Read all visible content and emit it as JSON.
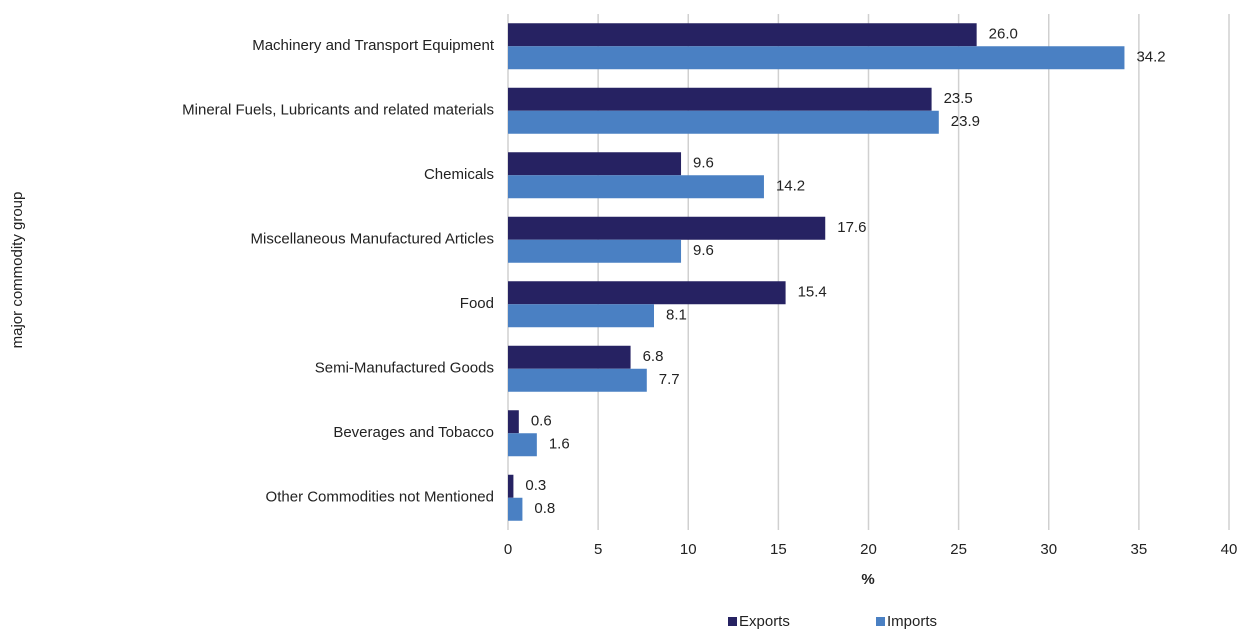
{
  "chart_data": {
    "type": "bar",
    "orientation": "horizontal",
    "categories": [
      "Machinery and Transport Equipment",
      "Mineral Fuels, Lubricants and related materials",
      "Chemicals",
      "Miscellaneous Manufactured Articles",
      "Food",
      "Semi-Manufactured Goods",
      "Beverages and Tobacco",
      "Other Commodities not Mentioned"
    ],
    "series": [
      {
        "name": "Exports",
        "color": "#262262",
        "values": [
          26.0,
          23.5,
          9.6,
          17.6,
          15.4,
          6.8,
          0.6,
          0.3
        ],
        "value_labels": [
          "26.0",
          "23.5",
          "9.6",
          "17.6",
          "15.4",
          "6.8",
          "0.6",
          "0.3"
        ]
      },
      {
        "name": "Imports",
        "color": "#4a80c3",
        "values": [
          34.2,
          23.9,
          14.2,
          9.6,
          8.1,
          7.7,
          1.6,
          0.8
        ],
        "value_labels": [
          "34.2",
          "23.9",
          "14.2",
          "9.6",
          "8.1",
          "7.7",
          "1.6",
          "0.8"
        ]
      }
    ],
    "x_label": "%",
    "y_label": "major commodity group",
    "xlim": [
      0,
      40
    ],
    "xticks": [
      0,
      5,
      10,
      15,
      20,
      25,
      30,
      35,
      40
    ],
    "grid": true,
    "legend": "bottom"
  }
}
